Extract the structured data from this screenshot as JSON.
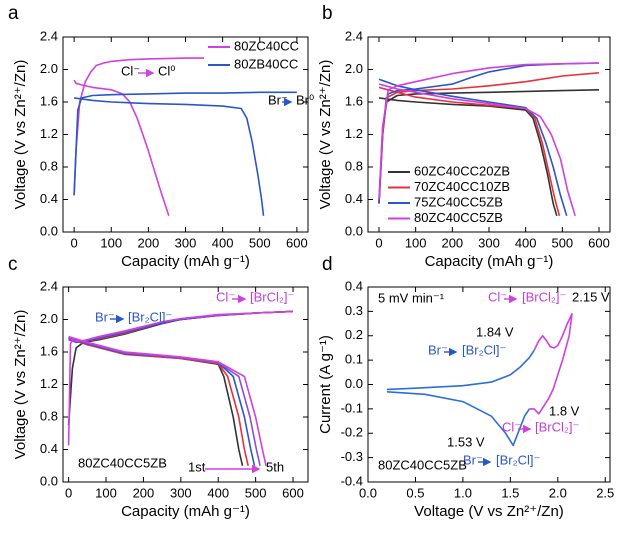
{
  "chart_data": [
    {
      "type": "line",
      "panel": "a",
      "xlabel": "Capacity (mAh g⁻¹)",
      "ylabel": "Voltage (V vs Zn²⁺/Zn)",
      "xlim": [
        -30,
        630
      ],
      "ylim": [
        0,
        2.4
      ],
      "xticks": [
        0,
        100,
        200,
        300,
        400,
        500,
        600
      ],
      "yticks": [
        {
          "value": 0,
          "label": "0.0"
        },
        0.4,
        0.8,
        1.2,
        1.6,
        {
          "value": 2,
          "label": "2.0"
        },
        2.4
      ],
      "legend": "upper right",
      "series": [
        {
          "name": "80ZC40CC",
          "color": "#d23fe0",
          "x": [
            0,
            5,
            15,
            30,
            45,
            60,
            80,
            100,
            150,
            200,
            300,
            350,
            null,
            0,
            5,
            20,
            50,
            100,
            130,
            150,
            170,
            200,
            230,
            255
          ],
          "values": [
            0.45,
            1.0,
            1.6,
            1.85,
            1.97,
            2.05,
            2.08,
            2.1,
            2.12,
            2.13,
            2.14,
            2.14,
            null,
            1.87,
            1.83,
            1.81,
            1.78,
            1.75,
            1.7,
            1.6,
            1.4,
            1.0,
            0.55,
            0.2
          ]
        },
        {
          "name": "80ZB40CC",
          "color": "#2b56c8",
          "x": [
            0,
            5,
            10,
            20,
            50,
            100,
            200,
            300,
            400,
            500,
            600,
            null,
            0,
            50,
            100,
            200,
            300,
            400,
            450,
            465,
            480,
            495,
            505,
            510
          ],
          "values": [
            0.45,
            1.0,
            1.5,
            1.65,
            1.68,
            1.69,
            1.7,
            1.71,
            1.71,
            1.72,
            1.72,
            null,
            1.65,
            1.62,
            1.6,
            1.58,
            1.57,
            1.55,
            1.52,
            1.4,
            1.1,
            0.7,
            0.4,
            0.2
          ]
        }
      ],
      "annotations": [
        {
          "text": "Cl⁻",
          "color": "#000"
        },
        {
          "text": "Cl⁰",
          "color": "#000"
        },
        {
          "text": "Br⁻",
          "color": "#000"
        },
        {
          "text": "Br⁰",
          "color": "#000"
        }
      ]
    },
    {
      "type": "line",
      "panel": "b",
      "xlabel": "Capacity (mAh g⁻¹)",
      "ylabel": "Voltage (V vs Zn²⁺/Zn)",
      "xlim": [
        -30,
        630
      ],
      "ylim": [
        0,
        2.4
      ],
      "xticks": [
        0,
        100,
        200,
        300,
        400,
        500,
        600
      ],
      "yticks": [
        {
          "value": 0,
          "label": "0.0"
        },
        0.4,
        0.8,
        1.2,
        1.6,
        {
          "value": 2,
          "label": "2.0"
        },
        2.4
      ],
      "legend": "lower left",
      "series": [
        {
          "name": "60ZC40CC20ZB",
          "color": "#333333",
          "x": [
            0,
            10,
            20,
            50,
            100,
            200,
            300,
            400,
            500,
            600,
            null,
            0,
            50,
            100,
            200,
            300,
            400,
            420,
            440,
            460,
            475,
            485
          ],
          "values": [
            0.35,
            1.2,
            1.6,
            1.68,
            1.7,
            1.71,
            1.72,
            1.73,
            1.74,
            1.75,
            null,
            1.65,
            1.62,
            1.6,
            1.57,
            1.55,
            1.5,
            1.4,
            1.1,
            0.7,
            0.35,
            0.2
          ]
        },
        {
          "name": "70ZC40CC10ZB",
          "color": "#e8303a",
          "x": [
            0,
            10,
            20,
            50,
            100,
            200,
            300,
            400,
            500,
            600,
            null,
            0,
            50,
            100,
            200,
            300,
            400,
            425,
            445,
            465,
            480,
            492
          ],
          "values": [
            0.35,
            1.2,
            1.65,
            1.72,
            1.74,
            1.76,
            1.8,
            1.85,
            1.92,
            1.96,
            null,
            1.78,
            1.72,
            1.66,
            1.6,
            1.56,
            1.52,
            1.4,
            1.1,
            0.7,
            0.4,
            0.2
          ]
        },
        {
          "name": "75ZC40CC5ZB",
          "color": "#2b56c8",
          "x": [
            0,
            10,
            25,
            50,
            100,
            200,
            250,
            300,
            400,
            500,
            600,
            null,
            0,
            50,
            100,
            200,
            300,
            400,
            430,
            455,
            475,
            495,
            512
          ],
          "values": [
            0.35,
            1.3,
            1.7,
            1.74,
            1.76,
            1.82,
            1.9,
            1.97,
            2.05,
            2.07,
            2.08,
            null,
            1.88,
            1.8,
            1.75,
            1.67,
            1.6,
            1.53,
            1.4,
            1.1,
            0.8,
            0.45,
            0.2
          ]
        },
        {
          "name": "80ZC40CC5ZB",
          "color": "#d23fe0",
          "x": [
            0,
            10,
            25,
            50,
            100,
            200,
            300,
            400,
            500,
            600,
            null,
            0,
            50,
            100,
            200,
            300,
            400,
            440,
            470,
            495,
            515,
            535
          ],
          "values": [
            0.4,
            1.3,
            1.75,
            1.8,
            1.85,
            1.95,
            2.02,
            2.06,
            2.07,
            2.08,
            null,
            1.82,
            1.76,
            1.72,
            1.64,
            1.58,
            1.52,
            1.42,
            1.2,
            0.9,
            0.5,
            0.2
          ]
        }
      ],
      "annotations": []
    },
    {
      "type": "line",
      "panel": "c",
      "xlabel": "Capacity (mAh g⁻¹)",
      "ylabel": "Voltage (V vs Zn²⁺/Zn)",
      "xlim": [
        -15,
        640
      ],
      "ylim": [
        0,
        2.4
      ],
      "xticks": [
        0,
        100,
        200,
        300,
        400,
        500,
        600
      ],
      "yticks": [
        {
          "value": 0,
          "label": "0.0"
        },
        0.4,
        0.8,
        1.2,
        1.6,
        {
          "value": 2,
          "label": "2.0"
        },
        2.4
      ],
      "series": [
        {
          "color": "#333333",
          "x": [
            0,
            10,
            20,
            40,
            80,
            150,
            250,
            300,
            400,
            500,
            600,
            null,
            0,
            50,
            150,
            300,
            400,
            415,
            440,
            455,
            465
          ],
          "values": [
            0.7,
            1.4,
            1.65,
            1.72,
            1.75,
            1.82,
            1.95,
            2.0,
            2.05,
            2.08,
            2.1,
            null,
            1.78,
            1.7,
            1.58,
            1.52,
            1.45,
            1.3,
            0.8,
            0.4,
            0.2
          ]
        },
        {
          "color": "#e8303a",
          "x": [
            0,
            10,
            20,
            40,
            80,
            150,
            250,
            300,
            400,
            500,
            600,
            null,
            0,
            50,
            150,
            300,
            400,
            425,
            455,
            470,
            480
          ],
          "values": [
            1.75,
            1.74,
            1.72,
            1.73,
            1.76,
            1.83,
            1.96,
            2.0,
            2.05,
            2.08,
            2.1,
            null,
            1.77,
            1.69,
            1.57,
            1.52,
            1.46,
            1.3,
            0.8,
            0.4,
            0.2
          ]
        },
        {
          "color": "#2b56c8",
          "x": [
            0,
            10,
            20,
            40,
            80,
            150,
            250,
            300,
            400,
            500,
            600,
            null,
            0,
            50,
            150,
            300,
            400,
            440,
            470,
            487,
            497
          ],
          "values": [
            1.76,
            1.74,
            1.72,
            1.73,
            1.77,
            1.84,
            1.96,
            2.0,
            2.05,
            2.08,
            2.1,
            null,
            1.78,
            1.7,
            1.58,
            1.53,
            1.47,
            1.3,
            0.8,
            0.4,
            0.2
          ]
        },
        {
          "color": "#8a4fd6",
          "x": [
            0,
            10,
            20,
            40,
            80,
            150,
            250,
            300,
            400,
            500,
            600,
            null,
            0,
            50,
            150,
            300,
            400,
            455,
            485,
            502,
            512
          ],
          "values": [
            1.77,
            1.75,
            1.73,
            1.74,
            1.78,
            1.85,
            1.97,
            2.01,
            2.05,
            2.08,
            2.1,
            null,
            1.78,
            1.71,
            1.59,
            1.53,
            1.47,
            1.3,
            0.8,
            0.4,
            0.2
          ]
        },
        {
          "color": "#d23fe0",
          "x": [
            0,
            5,
            10,
            20,
            40,
            80,
            150,
            250,
            300,
            400,
            500,
            600,
            null,
            0,
            50,
            150,
            300,
            400,
            470,
            500,
            518,
            528
          ],
          "values": [
            0.45,
            1.7,
            1.75,
            1.73,
            1.74,
            1.79,
            1.86,
            1.97,
            2.01,
            2.06,
            2.08,
            2.1,
            null,
            1.79,
            1.72,
            1.6,
            1.54,
            1.48,
            1.3,
            0.8,
            0.4,
            0.2
          ]
        }
      ],
      "annotations": [
        {
          "text": "Br⁻",
          "color": "#2b56c8"
        },
        {
          "text": "[Br₂Cl]⁻",
          "color": "#2b56c8"
        },
        {
          "text": "Cl⁻",
          "color": "#c13fd6"
        },
        {
          "text": "[BrCl₂]⁻",
          "color": "#c13fd6"
        },
        {
          "text": "80ZC40CC5ZB",
          "color": "#000"
        },
        {
          "text": "1st",
          "color": "#000"
        },
        {
          "text": "5th",
          "color": "#000"
        }
      ]
    },
    {
      "type": "line",
      "panel": "d",
      "xlabel": "Voltage (V vs Zn²⁺/Zn)",
      "ylabel": "Current (A g⁻¹)",
      "xlim": [
        0,
        2.55
      ],
      "ylim": [
        -0.4,
        0.4
      ],
      "xticks": [
        {
          "value": 0,
          "label": "0.0"
        },
        0.5,
        {
          "value": 1,
          "label": "1.0"
        },
        1.5,
        {
          "value": 2,
          "label": "2.0"
        },
        2.5
      ],
      "yticks": [
        -0.4,
        -0.3,
        -0.2,
        -0.1,
        {
          "value": 0,
          "label": "0.0"
        },
        0.1,
        0.2,
        0.3,
        0.4
      ],
      "series": [
        {
          "color": "#2b6fd6",
          "x": [
            0.2,
            0.5,
            1.0,
            1.3,
            1.5,
            1.6,
            1.7,
            1.75,
            null,
            1.7,
            1.65,
            1.6,
            1.53,
            1.45,
            1.3,
            1.0,
            0.6,
            0.2
          ],
          "values": [
            -0.02,
            -0.015,
            -0.005,
            0.01,
            0.04,
            0.07,
            0.11,
            0.14,
            null,
            -0.1,
            -0.13,
            -0.18,
            -0.25,
            -0.2,
            -0.13,
            -0.07,
            -0.04,
            -0.03
          ]
        },
        {
          "color": "#d23fe0",
          "x": [
            1.75,
            1.8,
            1.84,
            1.88,
            1.92,
            1.96,
            2.0,
            2.05,
            2.1,
            2.15,
            2.12,
            2.05,
            2.0,
            1.95,
            1.9,
            1.85,
            1.8,
            1.75,
            1.7
          ],
          "values": [
            0.14,
            0.18,
            0.2,
            0.18,
            0.155,
            0.15,
            0.16,
            0.2,
            0.25,
            0.29,
            0.2,
            0.1,
            0.04,
            -0.02,
            -0.06,
            -0.09,
            -0.12,
            -0.1,
            -0.1
          ]
        }
      ],
      "annotations": [
        {
          "text": "5 mV min⁻¹",
          "color": "#000"
        },
        {
          "text": "Cl⁻",
          "color": "#c13fd6"
        },
        {
          "text": "[BrCl₂]⁻",
          "color": "#c13fd6"
        },
        {
          "text": "2.15 V",
          "color": "#000"
        },
        {
          "text": "1.84 V",
          "color": "#000"
        },
        {
          "text": "Br⁻",
          "color": "#2b56c8"
        },
        {
          "text": "[Br₂Cl]⁻",
          "color": "#2b56c8"
        },
        {
          "text": "1.8 V",
          "color": "#000"
        },
        {
          "text": "Cl⁻",
          "color": "#c13fd6"
        },
        {
          "text": "[BrCl₂]⁻",
          "color": "#c13fd6"
        },
        {
          "text": "1.53 V",
          "color": "#000"
        },
        {
          "text": "Br⁻",
          "color": "#2b56c8"
        },
        {
          "text": "[Br₂Cl]⁻",
          "color": "#2b56c8"
        },
        {
          "text": "80ZC40CC5ZB",
          "color": "#000"
        }
      ]
    }
  ]
}
